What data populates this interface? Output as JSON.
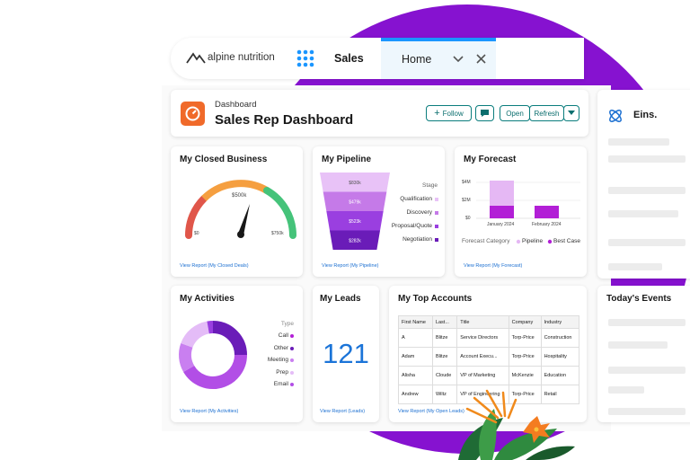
{
  "nav": {
    "brand": "alpine nutrition",
    "app": "Sales",
    "tab": "Home"
  },
  "header": {
    "label": "Dashboard",
    "title": "Sales Rep Dashboard",
    "buttons": [
      "Follow",
      "Open",
      "Refresh"
    ]
  },
  "side_panel": {
    "title": "Eins."
  },
  "events_panel": {
    "title": "Today's Events"
  },
  "cards": {
    "closed_business": {
      "title": "My Closed Business",
      "target": "$500k",
      "min": "$0",
      "max": "$750k",
      "link": "View Report (My Closed Deals)"
    },
    "pipeline": {
      "title": "My Pipeline",
      "values": [
        "$830k",
        "$479k",
        "$523k",
        "$282k"
      ],
      "legend_title": "Stage",
      "legend": [
        "Qualification",
        "Discovery",
        "Proposal/Quote",
        "Negotiation"
      ],
      "link": "View Report (My Pipeline)"
    },
    "forecast": {
      "title": "My Forecast",
      "yticks": [
        "$4M",
        "$2M",
        "$0"
      ],
      "categories": [
        "January 2024",
        "February 2024"
      ],
      "legend_title": "Forecast Category",
      "legend": [
        "Pipeline",
        "Best Case"
      ],
      "link": "View Report (My Forecast)"
    },
    "activities": {
      "title": "My Activities",
      "legend_title": "Type",
      "legend": [
        "Call",
        "Other",
        "Meeting",
        "Prep",
        "Email"
      ],
      "link": "View Report (My Activities)"
    },
    "leads": {
      "title": "My Leads",
      "count": "121",
      "link": "View Report (Leads)"
    },
    "top_accounts": {
      "title": "My Top Accounts",
      "columns": [
        "First Name",
        "Last...",
        "Title",
        "Company",
        "Industry"
      ],
      "rows": [
        [
          "A",
          "Blitze",
          "Service Directors",
          "Torp-Price",
          "Construction"
        ],
        [
          "Adam",
          "Blitze",
          "Account Execu...",
          "Torp-Price",
          "Hospitality"
        ],
        [
          "Alisha",
          "Cloude",
          "VP of Marketing",
          "McKenzie",
          "Education"
        ],
        [
          "Andrew",
          "Wiltz",
          "VP of Engineering",
          "Torp-Price",
          "Retail"
        ]
      ],
      "link": "View Report (My Open Leads)"
    }
  }
}
